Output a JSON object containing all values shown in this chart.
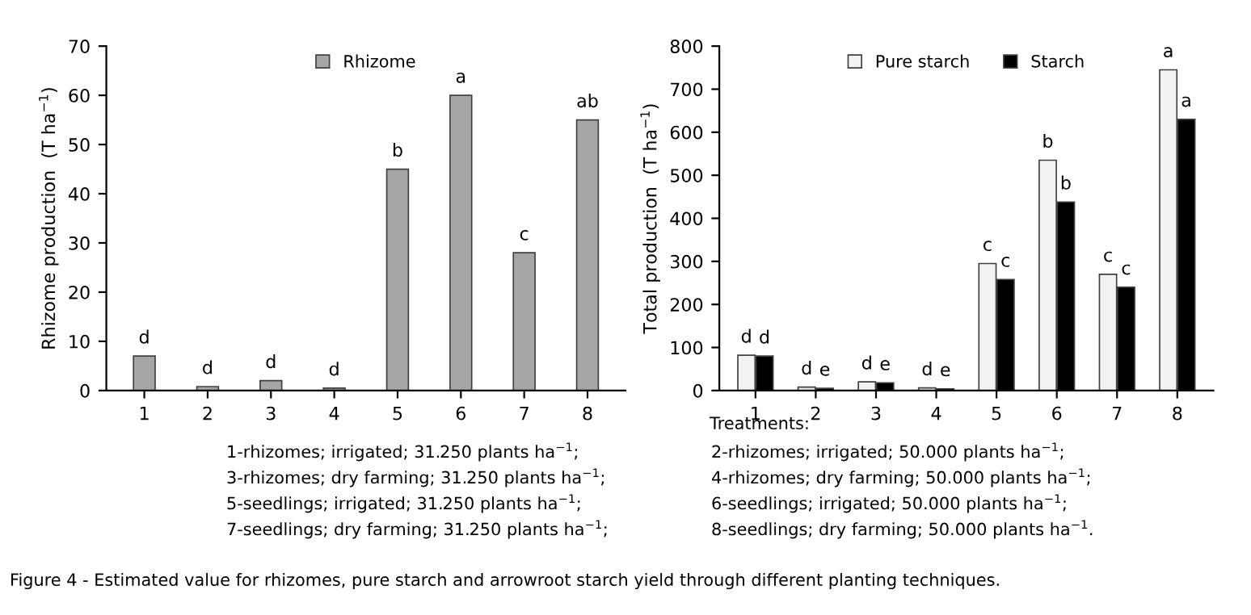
{
  "chart_data": [
    {
      "type": "bar",
      "ylabel": "Rhizome production  (T ha$^{−1}$)",
      "categories": [
        "1",
        "2",
        "3",
        "4",
        "5",
        "6",
        "7",
        "8"
      ],
      "series": [
        {
          "name": "Rhizome",
          "color": "#a6a6a6",
          "values": [
            7,
            0.8,
            2,
            0.5,
            45,
            60,
            28,
            55
          ]
        }
      ],
      "ylim": [
        0,
        70
      ],
      "yticks": [
        0,
        10,
        20,
        30,
        40,
        50,
        60,
        70
      ],
      "grid": false,
      "legend": "top",
      "annotations": [
        {
          "text": "d",
          "x": "1",
          "y": 7
        },
        {
          "text": "d",
          "x": "2",
          "y": 0.8
        },
        {
          "text": "d",
          "x": "3",
          "y": 2
        },
        {
          "text": "d",
          "x": "4",
          "y": 0.5
        },
        {
          "text": "b",
          "x": "5",
          "y": 45
        },
        {
          "text": "a",
          "x": "6",
          "y": 60
        },
        {
          "text": "c",
          "x": "7",
          "y": 28
        },
        {
          "text": "ab",
          "x": "8",
          "y": 55
        }
      ]
    },
    {
      "type": "bar",
      "ylabel": "Total production  (T ha$^{−1}$)",
      "categories": [
        "1",
        "2",
        "3",
        "4",
        "5",
        "6",
        "7",
        "8"
      ],
      "series": [
        {
          "name": "Pure starch",
          "color": "#f2f2f2",
          "values": [
            82,
            8,
            20,
            6,
            295,
            535,
            270,
            745
          ]
        },
        {
          "name": "Starch",
          "color": "#000000",
          "values": [
            80,
            5,
            18,
            4,
            258,
            438,
            240,
            630
          ]
        }
      ],
      "ylim": [
        0,
        800
      ],
      "yticks": [
        0,
        100,
        200,
        300,
        400,
        500,
        600,
        700,
        800
      ],
      "grid": false,
      "legend": "top",
      "annotations": [
        {
          "text": "d",
          "x": "1",
          "y": 82
        },
        {
          "text": "d",
          "x": "1",
          "y": 80
        },
        {
          "text": "d",
          "x": "2",
          "y": 8
        },
        {
          "text": "e",
          "x": "2",
          "y": 5
        },
        {
          "text": "d",
          "x": "3",
          "y": 20
        },
        {
          "text": "e",
          "x": "3",
          "y": 18
        },
        {
          "text": "d",
          "x": "4",
          "y": 6
        },
        {
          "text": "e",
          "x": "4",
          "y": 4
        },
        {
          "text": "c",
          "x": "5",
          "y": 295
        },
        {
          "text": "c",
          "x": "5",
          "y": 258
        },
        {
          "text": "b",
          "x": "6",
          "y": 535
        },
        {
          "text": "b",
          "x": "6",
          "y": 438
        },
        {
          "text": "c",
          "x": "7",
          "y": 270
        },
        {
          "text": "c",
          "x": "7",
          "y": 240
        },
        {
          "text": "a",
          "x": "8",
          "y": 745
        },
        {
          "text": "a",
          "x": "8",
          "y": 630
        },
        "Treatments:",
        "1-rhizomes; irrigated; 31.250 plants ha$^{−1}$;",
        "2-rhizomes; irrigated; 50.000 plants ha$^{−1}$;",
        "3-rhizomes; dry farming; 31.250 plants ha$^{−1}$;",
        "4-rhizomes; dry farming; 50.000 plants ha$^{−1}$;",
        "5-seedlings; irrigated; 31.250 plants ha$^{−1}$;",
        "6-seedlings; irrigated; 50.000 plants ha$^{−1}$;",
        "7-seedlings; dry farming; 31.250 plants ha$^{−1}$;",
        "8-seedlings; dry farming; 50.000 plants ha$^{−1}$.",
        "Figure 4 - Estimated value for rhizomes, pure starch and arrowroot starch yield through different planting techniques."
      ]
    }
  ]
}
